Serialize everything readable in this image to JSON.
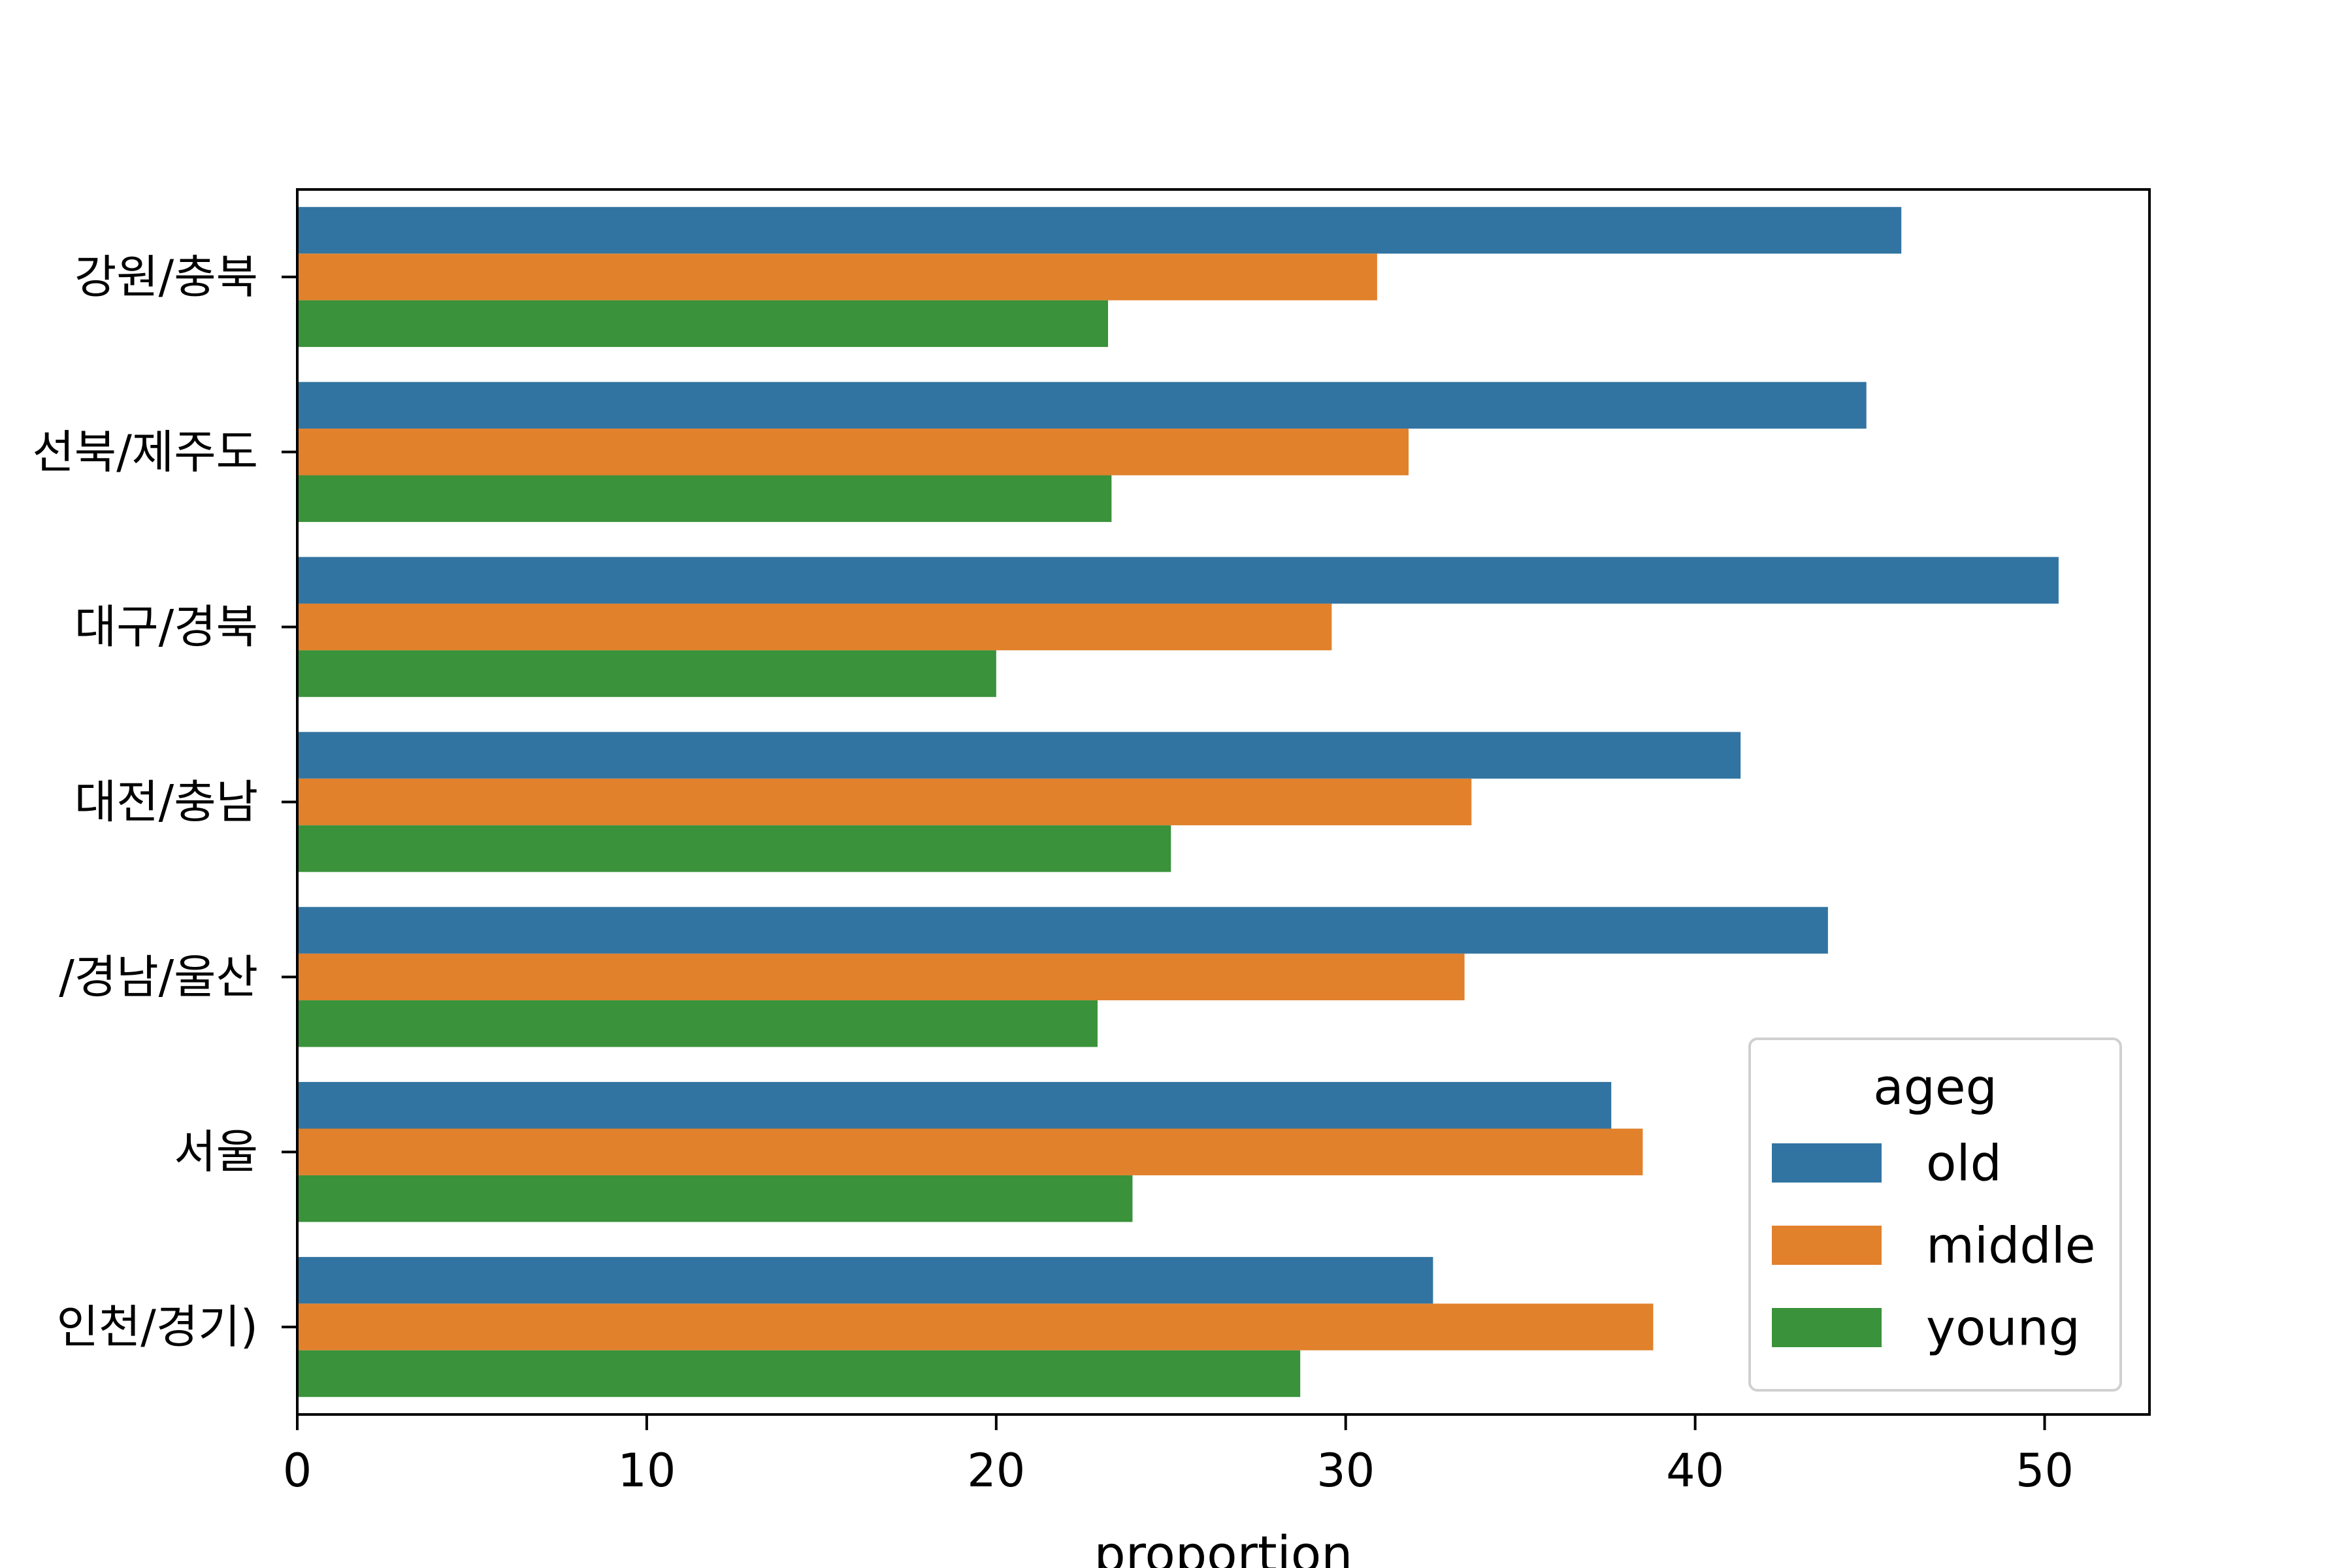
{
  "chart_data": {
    "type": "bar",
    "orientation": "horizontal",
    "categories": [
      "강원/충북",
      "전북/제주도",
      "대구/경북",
      "대전/충남",
      "부산/경남/울산",
      "서울",
      "수도권(인천/경기)"
    ],
    "category_tick_labels": [
      "강원/충북",
      "선북/제주도",
      "대구/경북",
      "대전/충남",
      "/경남/울산",
      "서울",
      "인천/경기)"
    ],
    "series": [
      {
        "name": "old",
        "color": "#3274a1",
        "values": [
          45.9,
          44.9,
          50.4,
          41.3,
          43.8,
          37.6,
          32.5
        ]
      },
      {
        "name": "middle",
        "color": "#e1812c",
        "values": [
          30.9,
          31.8,
          29.6,
          33.6,
          33.4,
          38.5,
          38.8
        ]
      },
      {
        "name": "young",
        "color": "#3a923a",
        "values": [
          23.2,
          23.3,
          20.0,
          25.0,
          22.9,
          23.9,
          28.7
        ]
      }
    ],
    "xlabel": "proportion",
    "ylabel": "",
    "xlim": [
      0,
      53
    ],
    "xticks": [
      0,
      10,
      20,
      30,
      40,
      50
    ],
    "legend": {
      "title": "ageg",
      "position": "lower-right"
    },
    "grid": false
  }
}
